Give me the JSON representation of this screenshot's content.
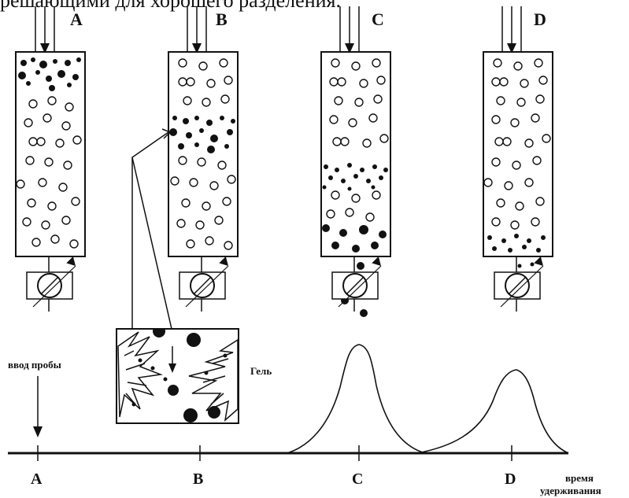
{
  "caption": "решающими для хорошего разделения.",
  "columns": [
    {
      "label": "A"
    },
    {
      "label": "B"
    },
    {
      "label": "C"
    },
    {
      "label": "D"
    }
  ],
  "axis_labels": [
    "A",
    "B",
    "C",
    "D"
  ],
  "sample_injection": "ввод пробы",
  "gel_label": "Гель",
  "x_axis_title_line1": "время",
  "x_axis_title_line2": "удерживания"
}
